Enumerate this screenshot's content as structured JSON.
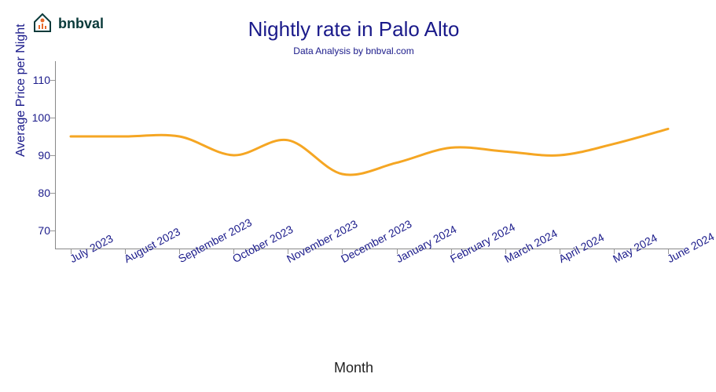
{
  "logo": {
    "text": "bnbval",
    "icon_primary": "#e86a2b",
    "icon_secondary": "#0a3a3a"
  },
  "chart": {
    "type": "line",
    "title": "Nightly rate in Palo Alto",
    "subtitle": "Data Analysis by bnbval.com",
    "xlabel": "Month",
    "ylabel": "Average Price per Night",
    "title_color": "#1a1a8a",
    "axis_text_color": "#1a1a8a",
    "line_color": "#f5a623",
    "background_color": "#ffffff",
    "title_fontsize": 26,
    "subtitle_fontsize": 12,
    "label_fontsize": 16,
    "tick_fontsize": 14,
    "line_width": 3,
    "ylim": [
      65,
      115
    ],
    "yticks": [
      70,
      80,
      90,
      100,
      110
    ],
    "categories": [
      "July 2023",
      "August 2023",
      "September 2023",
      "October 2023",
      "November 2023",
      "December 2023",
      "January 2024",
      "February 2024",
      "March 2024",
      "April 2024",
      "May 2024",
      "June 2024"
    ],
    "values": [
      95,
      95,
      95,
      90,
      94,
      85,
      88,
      92,
      91,
      90,
      93,
      97
    ],
    "x_tick_rotation": -28
  }
}
